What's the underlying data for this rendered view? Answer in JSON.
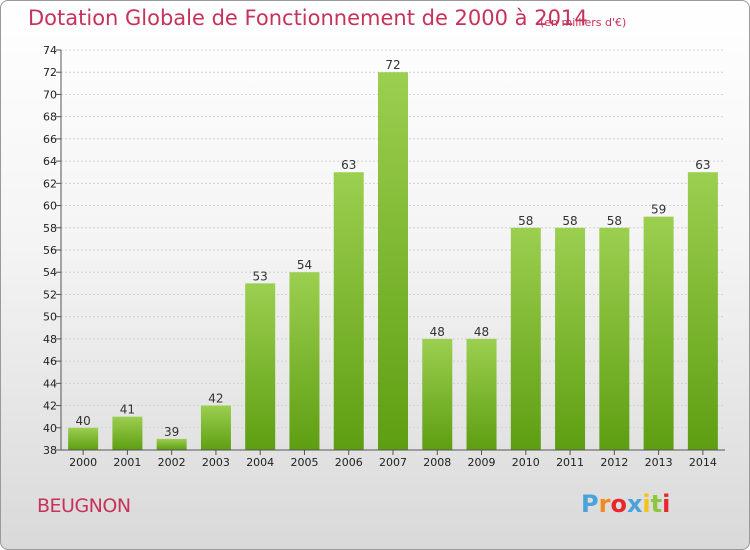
{
  "header": {
    "title": "Dotation Globale de Fonctionnement de 2000 à 2014",
    "subtitle": "(en milliers d'€)"
  },
  "footer": {
    "commune": "BEUGNON",
    "logo_text": "Proxiti",
    "logo_colors": [
      "#4aa3d8",
      "#f08a1c",
      "#e8262b",
      "#4aa3d8",
      "#f3c316",
      "#8dc63f",
      "#e8262b"
    ]
  },
  "colors": {
    "bar_light": "#9ccf50",
    "bar_dark": "#5e9e12",
    "title": "#c7325a"
  },
  "chart_data": {
    "type": "bar",
    "title": "Dotation Globale de Fonctionnement de 2000 à 2014",
    "subtitle": "(en milliers d'€)",
    "categories": [
      "2000",
      "2001",
      "2002",
      "2003",
      "2004",
      "2005",
      "2006",
      "2007",
      "2008",
      "2009",
      "2010",
      "2011",
      "2012",
      "2013",
      "2014"
    ],
    "values": [
      40,
      41,
      39,
      42,
      53,
      54,
      63,
      72,
      48,
      48,
      58,
      58,
      58,
      59,
      63
    ],
    "ylim": [
      38,
      74
    ],
    "yticks": [
      38,
      40,
      42,
      44,
      46,
      48,
      50,
      52,
      54,
      56,
      58,
      60,
      62,
      64,
      66,
      68,
      70,
      72,
      74
    ],
    "grid": true,
    "xlabel": "",
    "ylabel": ""
  }
}
